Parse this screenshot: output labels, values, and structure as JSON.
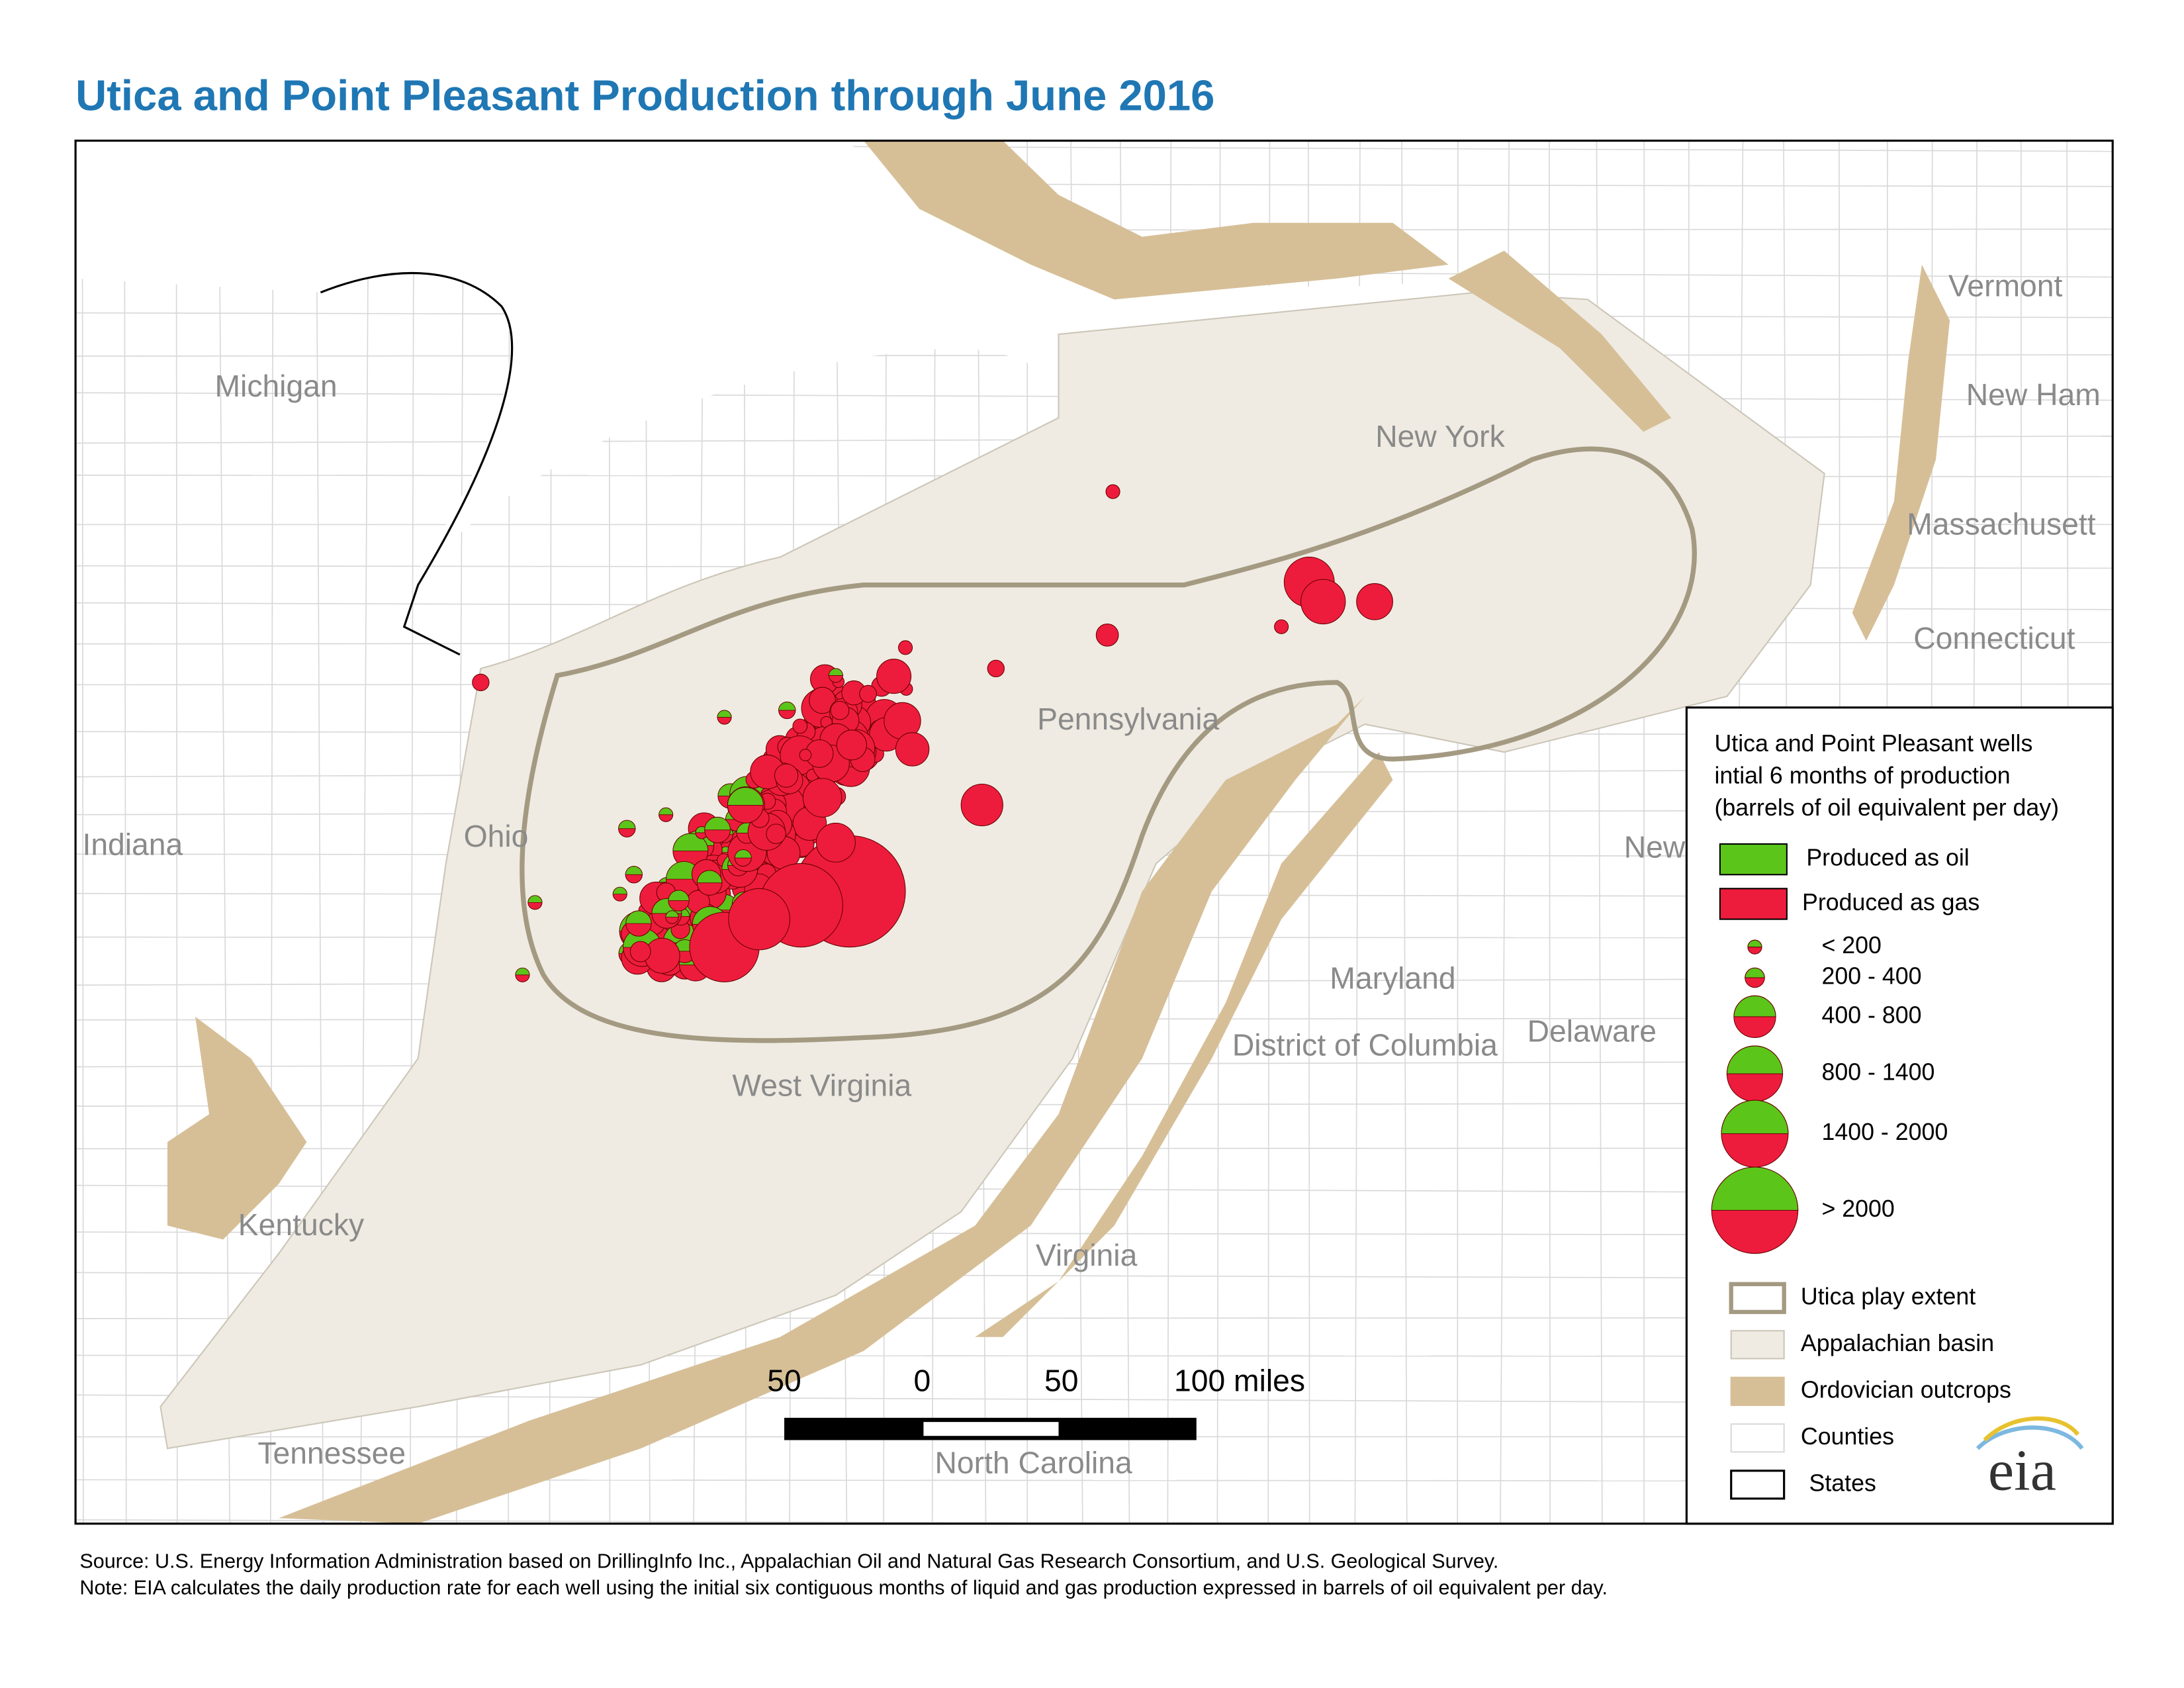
{
  "title": "Utica and Point Pleasant Production through June 2016",
  "map": {
    "labels": [
      "Michigan",
      "Indiana",
      "Ohio",
      "Kentucky",
      "Tennessee",
      "West Virginia",
      "Virginia",
      "North Carolina",
      "Pennsylvania",
      "New York",
      "Maryland",
      "District of Columbia",
      "Delaware",
      "New",
      "Vermont",
      "New Ham",
      "Massachusett",
      "Connecticut"
    ]
  },
  "legend": {
    "title_lines": [
      "Utica and Point Pleasant wells",
      "intial 6 months of production",
      "(barrels of oil equivalent per day)"
    ],
    "items": [
      "Produced as oil",
      "Produced as gas"
    ],
    "size_classes": [
      "< 200",
      "200 - 400",
      "400 - 800",
      "800 - 1400",
      "1400 - 2000",
      "> 2000"
    ],
    "layers": [
      "Utica play extent",
      "Appalachian basin",
      "Ordovician outcrops",
      "Counties",
      "States"
    ]
  },
  "scale_bar": {
    "labels": [
      "50",
      "0",
      "50",
      "100 miles"
    ]
  },
  "logo": "eia",
  "footer": {
    "source": "Source: U.S. Energy Information Administration based on DrillingInfo Inc., Appalachian Oil and Natural Gas Research Consortium, and U.S. Geological Survey.",
    "note": "Note: EIA calculates the daily production rate for each well using the initial six contiguous months of liquid and gas production expressed in barrels of oil equivalent per day."
  }
}
